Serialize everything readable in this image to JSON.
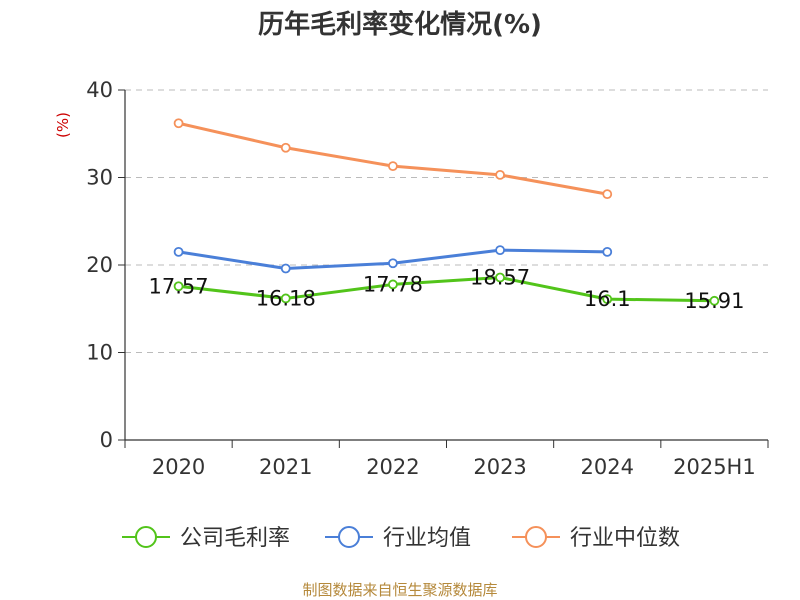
{
  "chart_data": {
    "type": "line",
    "title": "历年毛利率变化情况(%)",
    "ylabel": "(%)",
    "xlabel": "",
    "categories": [
      "2020",
      "2021",
      "2022",
      "2023",
      "2024",
      "2025H1"
    ],
    "ylim": [
      0,
      40
    ],
    "yticks": [
      0,
      10,
      20,
      30,
      40
    ],
    "grid": true,
    "legend_position": "bottom",
    "series": [
      {
        "name": "公司毛利率",
        "color": "#52c41a",
        "values": [
          17.57,
          16.18,
          17.78,
          18.57,
          16.1,
          15.91
        ],
        "labels": [
          "17.57",
          "16.18",
          "17.78",
          "18.57",
          "16.1",
          "15.91"
        ]
      },
      {
        "name": "行业均值",
        "color": "#4a7fd8",
        "values": [
          21.5,
          19.6,
          20.2,
          21.7,
          21.5,
          null
        ]
      },
      {
        "name": "行业中位数",
        "color": "#f5915a",
        "values": [
          36.2,
          33.4,
          31.3,
          30.3,
          28.1,
          null
        ]
      }
    ],
    "source": "制图数据来自恒生聚源数据库"
  }
}
